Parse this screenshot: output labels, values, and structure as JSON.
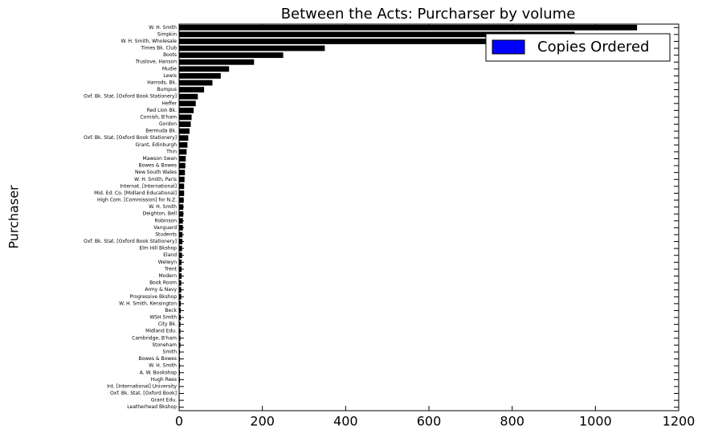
{
  "chart_data": {
    "type": "barh",
    "title": "Between the Acts: Purcharser by volume",
    "y_label": "Purchaser",
    "categories": [
      "W. H. Smith",
      "Simpkin",
      "W. H. Smith, Wholesale",
      "Times Bk. Club",
      "Boots",
      "Truslove, Hanson",
      "Mudie",
      "Lewis",
      "Harrods, Bk.",
      "Bumpus",
      "Oxf. Bk. Stat. [Oxford Book Stationery]",
      "Heffer",
      "Red Lion Bk.",
      "Cornish, B'ham",
      "Gordon",
      "Bermuda Bk.",
      "Oxf. Bk. Stat. [Oxford Book Stationery]",
      "Grant, Edinburgh",
      "Thin",
      "Mawson Swan",
      "Bowes & Bowes",
      "New South Wales",
      "W. H. Smith, Paris",
      "Internat. [International]",
      "Mid. Ed. Co. [Midland Educational]",
      "High Com. [Commission] for N.Z.",
      "W. H. Smith",
      "Deighton, Bell",
      "Robinson",
      "Vanguard",
      "Students",
      "Oxf. Bk. Stat. [Oxford Book Stationery]",
      "Elm Hill Bkshop",
      "Eland",
      "Welwyn",
      "Trent",
      "Modern",
      "Book Room",
      "Army & Navy",
      "Progressive Bkshop",
      "W. H. Smith, Kensington",
      "Beck",
      "WSH Smith",
      "City Bk.",
      "Midland Edu.",
      "Cambridge, B'ham",
      "Stoneham",
      "Smith",
      "Bowes & Bowes",
      "W. H. Smith",
      "A. W. Bookshop",
      "Hugh Rees",
      "Int. [International] University",
      "Oxf. Bk. Stat. [Oxford Book]",
      "Grant Edu.",
      "Leatherhead Bkshop"
    ],
    "values": [
      1100,
      950,
      760,
      350,
      250,
      180,
      120,
      100,
      80,
      60,
      45,
      40,
      35,
      30,
      28,
      25,
      22,
      20,
      18,
      16,
      15,
      14,
      13,
      12,
      12,
      11,
      10,
      10,
      9,
      9,
      8,
      8,
      7,
      7,
      6,
      6,
      6,
      5,
      5,
      5,
      4,
      4,
      4,
      3,
      3,
      3,
      3,
      2,
      2,
      2,
      2,
      2,
      1,
      1,
      1,
      1
    ],
    "color": "#000000",
    "xlim": [
      0,
      1200
    ],
    "xticks": [
      0,
      200,
      400,
      600,
      800,
      1000,
      1200
    ],
    "legend": {
      "label": "Copies Ordered",
      "color": "#0000ff",
      "position": "upper right"
    }
  }
}
